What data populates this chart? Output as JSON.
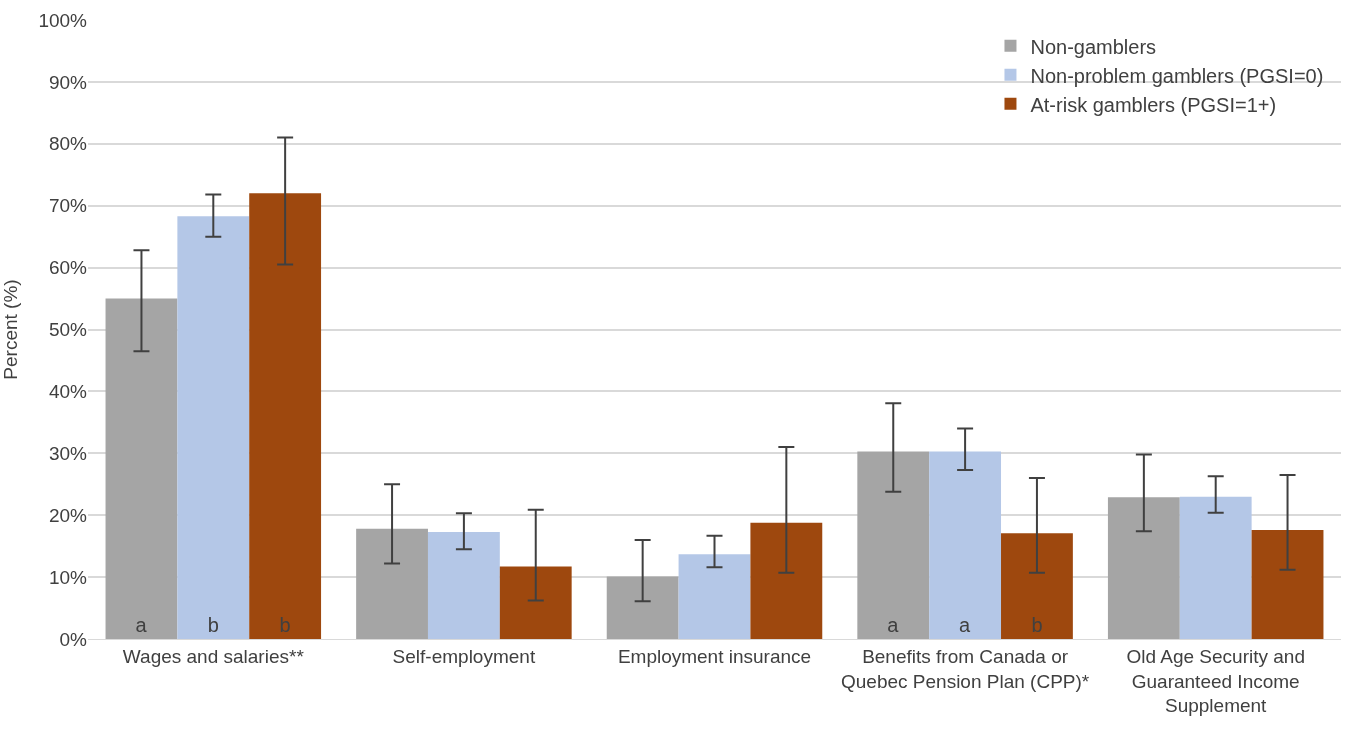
{
  "chart_data": {
    "type": "bar",
    "ylabel": "Percent (%)",
    "categories": [
      "Wages and salaries**",
      "Self-employment",
      "Employment insurance",
      "Benefits from Canada or Quebec Pension Plan (CPP)*",
      "Old Age Security and Guaranteed Income Supplement"
    ],
    "series": [
      {
        "name": "Non-gamblers",
        "color": "#a5a5a5",
        "values": [
          55,
          17.8,
          10.1,
          30.3,
          22.9
        ],
        "errors": [
          [
            46.5,
            62.8
          ],
          [
            12.2,
            25
          ],
          [
            6.1,
            16
          ],
          [
            23.8,
            38.1
          ],
          [
            17.4,
            29.8
          ]
        ],
        "value_labels": [
          "a",
          null,
          null,
          "a",
          null
        ]
      },
      {
        "name": "Non-problem gamblers (PGSI=0)",
        "color": "#b4c7e7",
        "values": [
          68.3,
          17.3,
          13.7,
          30.3,
          23
        ],
        "errors": [
          [
            65,
            71.8
          ],
          [
            14.5,
            20.3
          ],
          [
            11.6,
            16.7
          ],
          [
            27.3,
            34
          ],
          [
            20.4,
            26.3
          ]
        ],
        "value_labels": [
          "b",
          null,
          null,
          "a",
          null
        ]
      },
      {
        "name": "At-risk gamblers (PGSI=1+)",
        "color": "#9e480e",
        "values": [
          72,
          11.7,
          18.8,
          17.1,
          17.6
        ],
        "errors": [
          [
            60.5,
            81
          ],
          [
            6.2,
            20.9
          ],
          [
            10.7,
            31
          ],
          [
            10.7,
            26
          ],
          [
            11.2,
            26.5
          ]
        ],
        "value_labels": [
          "b",
          null,
          null,
          "b",
          null
        ]
      }
    ],
    "ylim": [
      0,
      100
    ],
    "yticks": [
      {
        "value": 0,
        "label": "0%"
      },
      {
        "value": 10,
        "label": "10%"
      },
      {
        "value": 20,
        "label": "20%"
      },
      {
        "value": 30,
        "label": "30%"
      },
      {
        "value": 40,
        "label": "40%"
      },
      {
        "value": 50,
        "label": "50%"
      },
      {
        "value": 60,
        "label": "60%"
      },
      {
        "value": 70,
        "label": "70%"
      },
      {
        "value": 80,
        "label": "80%"
      },
      {
        "value": 90,
        "label": "90%"
      },
      {
        "value": 100,
        "label": "100%"
      }
    ],
    "grid": "y",
    "legend": "top right"
  }
}
